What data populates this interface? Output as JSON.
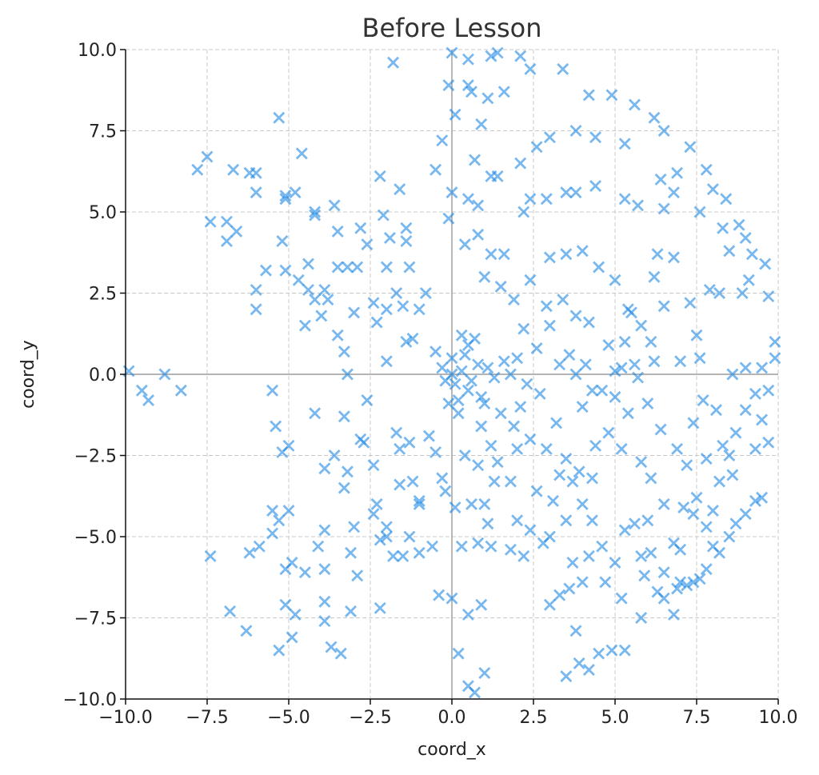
{
  "chart_data": {
    "type": "scatter",
    "title": "Before Lesson",
    "xlabel": "coord_x",
    "ylabel": "coord_y",
    "color": "#1e88e5",
    "marker": "x",
    "grid": true,
    "xlim": [
      -10,
      10
    ],
    "ylim": [
      -10,
      10
    ],
    "xticks": [
      {
        "value": -10,
        "label": "−10.0"
      },
      {
        "value": -7.5,
        "label": "−7.5"
      },
      {
        "value": -5,
        "label": "−5.0"
      },
      {
        "value": -2.5,
        "label": "−2.5"
      },
      {
        "value": 0,
        "label": "0.0"
      },
      {
        "value": 2.5,
        "label": "2.5"
      },
      {
        "value": 5,
        "label": "5.0"
      },
      {
        "value": 7.5,
        "label": "7.5"
      },
      {
        "value": 10,
        "label": "10.0"
      }
    ],
    "yticks": [
      {
        "value": -10,
        "label": "−10.0"
      },
      {
        "value": -7.5,
        "label": "−7.5"
      },
      {
        "value": -5,
        "label": "−5.0"
      },
      {
        "value": -2.5,
        "label": "−2.5"
      },
      {
        "value": 0,
        "label": "0.0"
      },
      {
        "value": 2.5,
        "label": "2.5"
      },
      {
        "value": 5,
        "label": "5.0"
      },
      {
        "value": 7.5,
        "label": "7.5"
      },
      {
        "value": 10,
        "label": "10.0"
      }
    ],
    "x": [
      -9.9,
      -9.5,
      -9.3,
      -8.8,
      -8.3,
      -7.8,
      -7.5,
      -7.4,
      -6.9,
      -6.9,
      -6.7,
      -6.6,
      -6.2,
      -6.0,
      -6.0,
      -6.0,
      -6.0,
      -5.7,
      -5.3,
      -5.1,
      -5.1,
      -4.8,
      -5.2,
      -5.1,
      -4.7,
      -4.6,
      -4.2,
      -4.2,
      -4.4,
      -4.4,
      -4.2,
      -4.5,
      -4.0,
      -3.9,
      -3.6,
      -3.5,
      -3.5,
      -3.2,
      -2.9,
      -2.8,
      -2.6,
      -2.2,
      -2.1,
      -1.9,
      -1.6,
      -1.4,
      -1.4,
      -1.3,
      -2.0,
      -1.7,
      -2.4,
      -2.0,
      -2.3,
      -1.5,
      -1.0,
      -0.8,
      -1.2,
      -1.4,
      -2.0,
      -3.5,
      -3.3,
      -3.2,
      -3.8,
      -3.0,
      -1.8,
      -7.4,
      -6.8,
      -6.3,
      -6.2,
      -5.9,
      -5.5,
      -5.4,
      -5.2,
      -5.0,
      -5.5,
      -5.3,
      -5.0,
      -5.5,
      -5.1,
      -4.9,
      -5.1,
      -4.8,
      -4.9,
      -5.3,
      -4.5,
      -4.1,
      -4.2,
      -3.9,
      -3.6,
      -3.9,
      -3.9,
      -3.9,
      -3.9,
      -3.7,
      -3.4,
      -3.1,
      -3.1,
      -2.9,
      -3.0,
      -3.3,
      -3.2,
      -3.3,
      -2.8,
      -2.7,
      -2.4,
      -2.6,
      -2.3,
      -2.4,
      -2.2,
      -2.0,
      -2.0,
      -1.8,
      -1.7,
      -1.6,
      -1.6,
      -1.3,
      -1.2,
      -1.0,
      -1.0,
      -1.3,
      -1.0,
      -0.6,
      -0.5,
      -0.7,
      -2.2,
      -1.5,
      0,
      0.1,
      -0.2,
      0.3,
      0.5,
      0.2,
      -0.3,
      0.4,
      0.8,
      0.6,
      -0.5,
      0.9,
      0.7,
      0.3,
      1.1,
      -0.1,
      0,
      0.2,
      0.5,
      1.3,
      0,
      0.5,
      0.5,
      1.2,
      1.4,
      2.1,
      2.4,
      3.4,
      1.1,
      1.6,
      0.1,
      -0.1,
      0.6,
      0.9,
      -0.3,
      0.7,
      1.2,
      1.4,
      2.1,
      -0.5,
      0,
      0.5,
      0.8,
      -0.1,
      0.4,
      0.8,
      1.2,
      1.6,
      2.2,
      2.6,
      3.0,
      3.8,
      4.4,
      2.4,
      2.9,
      3.5,
      3.8,
      4.4,
      5.3,
      4.2,
      4.9,
      5.6,
      6.2,
      6.5,
      7.3,
      6.9,
      6.4,
      5.7,
      5.3,
      6.5,
      6.8,
      7.6,
      7.8,
      8.0,
      8.4,
      8.3,
      8.8,
      9.0,
      8.5,
      9.2,
      9.6,
      9.1,
      8.9,
      9.7,
      9.9,
      9.9,
      9.5,
      9.0,
      8.6,
      9.7,
      9.3,
      9.5,
      9.0,
      8.7,
      9.3,
      9.7,
      8.3,
      8.6,
      8.2,
      8.5,
      8.7,
      9.0,
      9.3,
      9.5,
      8.2,
      8.0,
      8.5,
      7.8,
      7.6,
      7.4,
      7.2,
      7.0,
      6.8,
      6.9,
      6.5,
      6.3,
      6.5,
      6.1,
      5.8,
      5.9,
      3.0,
      3.5,
      4.0,
      4.5,
      5.0,
      5.4,
      6.2,
      6.3,
      6.8,
      7.3,
      7.9,
      8.2,
      6.5,
      5.8,
      5.3,
      4.8,
      4.2,
      3.8,
      3.4,
      2.9,
      2.4,
      1.9,
      1.5,
      1.0,
      2.2,
      3.0,
      3.3,
      2.6,
      3.6,
      4.1,
      5.0,
      5.6,
      6.2,
      7.0,
      7.6,
      7.5,
      6.1,
      5.5,
      2.0,
      1.6,
      1.5,
      1.9,
      2.4,
      2.9,
      3.5,
      3.9,
      4.3,
      3.3,
      3.7,
      4.8,
      5.0,
      4.6,
      5.4,
      6.0,
      6.4,
      6.9,
      7.4,
      7.7,
      8.1,
      5.2,
      5.8,
      6.1,
      5.6,
      5.3,
      6.0,
      6.5,
      7.1,
      7.5,
      7.2,
      7.8,
      4.3,
      4.0,
      3.5,
      3.0,
      2.8,
      2.4,
      2.0,
      1.8,
      1.4,
      1.2,
      0.9,
      2.6,
      3.1,
      4.6,
      5.0,
      4.2,
      3.7,
      3.6,
      4.0,
      4.7,
      5.2,
      3.3,
      3.0,
      3.8,
      4.5,
      4.9,
      5.3,
      4.2,
      3.9,
      3.5,
      2.2,
      1.8,
      1.2,
      0.8,
      0.3,
      0.1,
      0.6,
      1.0,
      1.1,
      0,
      -0.4,
      0.5,
      0.9,
      0.2,
      0.5,
      0.7,
      1.0,
      0.4,
      0.8,
      -0.3,
      -0.2,
      1.3,
      2.0,
      6.8,
      7.4,
      7.8,
      8.0,
      5.8,
      7.0,
      2.1,
      2.7,
      3.2,
      4.0,
      4.4,
      1.0,
      1.8,
      2.3,
      3.8,
      4.3,
      5.2,
      5.7
    ],
    "values": [
      0.1,
      -0.5,
      -0.8,
      0,
      -0.5,
      6.3,
      6.7,
      4.7,
      4.7,
      4.1,
      6.3,
      4.4,
      6.2,
      6.2,
      5.6,
      2.6,
      2.0,
      3.2,
      7.9,
      5.5,
      5.4,
      5.6,
      4.1,
      3.2,
      2.9,
      6.8,
      5.0,
      4.9,
      3.4,
      2.6,
      2.3,
      1.5,
      1.8,
      2.6,
      5.2,
      4.4,
      3.3,
      3.3,
      3.3,
      4.5,
      4.0,
      6.1,
      4.9,
      4.2,
      5.7,
      4.5,
      4.1,
      3.3,
      3.3,
      2.5,
      2.2,
      2.0,
      1.6,
      2.1,
      2.0,
      2.5,
      1.1,
      1.0,
      0.4,
      1.2,
      0.7,
      0,
      2.3,
      1.9,
      9.6,
      -5.6,
      -7.3,
      -7.9,
      -5.5,
      -5.3,
      -0.5,
      -1.6,
      -2.4,
      -2.2,
      -4.2,
      -4.5,
      -4.2,
      -4.9,
      -6.0,
      -5.8,
      -7.1,
      -7.4,
      -8.1,
      -8.5,
      -6.1,
      -5.3,
      -1.2,
      -2.9,
      -2.5,
      -4.8,
      -6.0,
      -7.0,
      -7.6,
      -8.4,
      -8.6,
      -7.3,
      -5.5,
      -6.2,
      -4.7,
      -3.5,
      -3.0,
      -1.3,
      -2.0,
      -2.1,
      -2.8,
      -0.8,
      -4.0,
      -4.3,
      -5.1,
      -4.7,
      -5.0,
      -5.6,
      -1.8,
      -2.3,
      -3.4,
      -2.1,
      -3.3,
      -3.9,
      -4.0,
      -5.0,
      -5.5,
      -5.3,
      -2.4,
      -1.9,
      -7.2,
      -5.6,
      0,
      -0.3,
      -0.2,
      0.1,
      -0.5,
      -0.8,
      0.2,
      0.6,
      0.3,
      -0.2,
      0.7,
      -0.7,
      1.1,
      1.2,
      0.2,
      -0.9,
      0.5,
      -1.2,
      0.9,
      -0.1,
      9.9,
      9.7,
      8.9,
      9.8,
      9.9,
      9.8,
      9.4,
      9.4,
      8.5,
      8.7,
      8.0,
      8.9,
      8.7,
      7.7,
      7.2,
      6.6,
      6.1,
      6.1,
      6.5,
      6.3,
      5.6,
      5.4,
      5.2,
      4.8,
      4.0,
      4.3,
      3.7,
      3.7,
      5.0,
      7.0,
      7.3,
      7.5,
      7.3,
      5.4,
      5.4,
      5.6,
      5.6,
      5.8,
      7.1,
      8.6,
      8.6,
      8.3,
      7.9,
      7.5,
      7.0,
      6.2,
      6.0,
      5.2,
      5.4,
      5.1,
      5.6,
      5.0,
      6.3,
      5.7,
      5.4,
      4.5,
      4.6,
      4.2,
      3.8,
      3.7,
      3.4,
      2.9,
      2.5,
      2.4,
      1.0,
      0.5,
      0.2,
      0.2,
      0,
      -0.5,
      -0.6,
      -1.4,
      -1.1,
      -1.8,
      -2.3,
      -2.1,
      -2.2,
      -3.1,
      -3.3,
      -2.5,
      -4.6,
      -4.3,
      -3.9,
      -3.8,
      -5.5,
      -5.3,
      -5.0,
      -6.0,
      -6.3,
      -6.4,
      -6.5,
      -6.4,
      -7.4,
      -6.6,
      -6.9,
      -6.7,
      -6.1,
      -5.5,
      -5.6,
      -6.2,
      3.6,
      3.7,
      3.8,
      3.3,
      2.9,
      2.0,
      3.0,
      3.7,
      3.6,
      2.2,
      2.6,
      2.5,
      2.1,
      1.5,
      1.0,
      0.9,
      1.6,
      1.8,
      2.3,
      2.1,
      2.9,
      2.3,
      2.7,
      3.0,
      1.4,
      1.5,
      0.3,
      0.8,
      0.6,
      0.3,
      0.1,
      0.3,
      0.4,
      0.4,
      0.5,
      1.2,
      1.0,
      1.9,
      0.5,
      0.4,
      -1.2,
      -1.6,
      -2.0,
      -2.3,
      -2.6,
      -3.0,
      -3.2,
      -3.1,
      -3.3,
      -1.8,
      -0.7,
      -0.5,
      -1.2,
      -0.9,
      -1.7,
      -2.3,
      -1.5,
      -0.8,
      -1.1,
      -2.3,
      -2.7,
      -3.2,
      -4.6,
      -4.8,
      -4.5,
      -4.0,
      -4.1,
      -3.8,
      -2.8,
      -2.6,
      -4.5,
      -4.0,
      -4.5,
      -5.0,
      -5.2,
      -4.8,
      -4.5,
      -3.3,
      -2.7,
      -2.2,
      -1.6,
      -3.6,
      -3.9,
      -5.3,
      -5.8,
      -5.6,
      -5.8,
      -6.6,
      -6.4,
      -6.4,
      -6.9,
      -6.8,
      -7.1,
      -7.9,
      -8.6,
      -8.5,
      -8.5,
      -9.1,
      -8.9,
      -9.3,
      -5.6,
      -5.4,
      -5.3,
      -5.2,
      -5.3,
      -4.1,
      -4.0,
      -4.0,
      -4.6,
      -6.9,
      -6.8,
      -7.4,
      -7.1,
      -8.6,
      -9.6,
      -9.8,
      -9.2,
      -2.5,
      -2.8,
      -3.2,
      -3.6,
      -3.3,
      -2.3,
      -5.2,
      -4.3,
      -4.7,
      -4.2,
      -7.5,
      -5.4,
      -1.0,
      -0.6,
      -1.5,
      -1.0,
      -2.2,
      -0.9,
      0,
      -0.3,
      0,
      -0.5,
      0.2,
      -0.1
    ]
  }
}
